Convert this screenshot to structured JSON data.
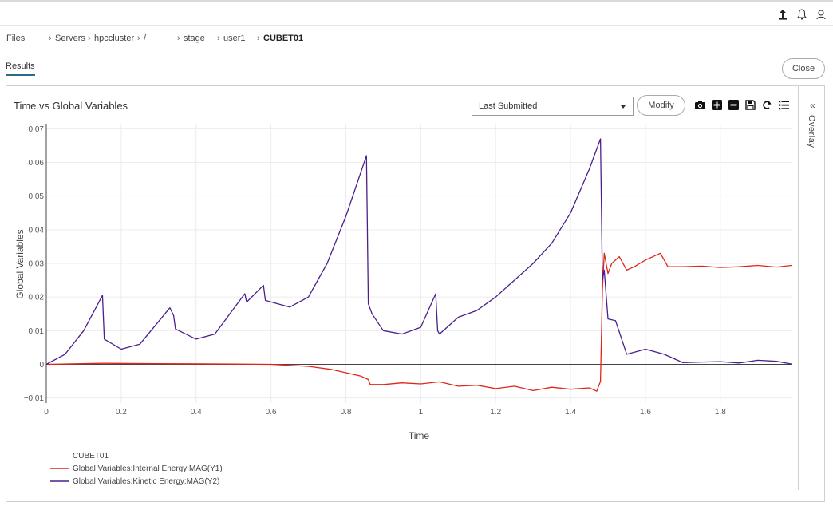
{
  "topbar": {
    "icons": [
      "upload-icon",
      "bell-icon",
      "user-icon"
    ]
  },
  "breadcrumb": {
    "items": [
      {
        "label": "Files",
        "sep": ""
      },
      {
        "label": "Servers",
        "sep": "›"
      },
      {
        "label": "hpccluster",
        "sep": "›"
      },
      {
        "label": "/",
        "sep": "›"
      },
      {
        "label": "stage",
        "sep": "›"
      },
      {
        "label": "user1",
        "sep": "›"
      },
      {
        "label": "CUBET01",
        "sep": "›"
      }
    ]
  },
  "tabs": {
    "results": "Results"
  },
  "buttons": {
    "close": "Close",
    "modify": "Modify"
  },
  "plot_controls": {
    "selected": "Last Submitted",
    "overlay_label": "Overlay"
  },
  "toolbar": {
    "icons": [
      "camera-icon",
      "zoom-in-icon",
      "zoom-out-icon",
      "save-icon",
      "reset-icon",
      "list-icon"
    ]
  },
  "colors": {
    "y1": "#e0261c",
    "y2": "#4b1f8c",
    "accent": "#2b6c8a"
  },
  "chart_data": {
    "type": "line",
    "title": "Time vs Global Variables",
    "xlabel": "Time",
    "ylabel": "Global Variables",
    "xlim": [
      0,
      1.99
    ],
    "ylim": [
      -0.0115,
      0.0715
    ],
    "xticks": [
      "0",
      "0.2",
      "0.4",
      "0.6",
      "0.8",
      "1",
      "1.2",
      "1.4",
      "1.6",
      "1.8"
    ],
    "yticks": [
      "0.07",
      "0.06",
      "0.05",
      "0.04",
      "0.03",
      "0.02",
      "0.01",
      "0",
      "−0.01"
    ],
    "legend": {
      "title": "CUBET01",
      "position": "bottom-left"
    },
    "series": [
      {
        "name": "Global Variables:Internal Energy:MAG(Y1)",
        "x": [
          0,
          0.15,
          0.3,
          0.5,
          0.6,
          0.7,
          0.76,
          0.8,
          0.84,
          0.86,
          0.865,
          0.9,
          0.95,
          1.0,
          1.05,
          1.1,
          1.15,
          1.2,
          1.25,
          1.3,
          1.35,
          1.4,
          1.45,
          1.47,
          1.48,
          1.485,
          1.49,
          1.5,
          1.51,
          1.53,
          1.55,
          1.57,
          1.6,
          1.64,
          1.66,
          1.7,
          1.75,
          1.8,
          1.85,
          1.9,
          1.95,
          1.99
        ],
        "y": [
          0,
          0.0003,
          0.0002,
          0.0001,
          0.0,
          -0.0006,
          -0.0015,
          -0.0025,
          -0.0035,
          -0.0045,
          -0.006,
          -0.006,
          -0.0055,
          -0.0058,
          -0.0052,
          -0.0065,
          -0.0062,
          -0.0072,
          -0.0065,
          -0.0078,
          -0.0068,
          -0.0074,
          -0.007,
          -0.008,
          -0.005,
          0.022,
          0.033,
          0.027,
          0.03,
          0.032,
          0.028,
          0.029,
          0.031,
          0.033,
          0.029,
          0.029,
          0.0292,
          0.0288,
          0.029,
          0.0294,
          0.0289,
          0.0294
        ]
      },
      {
        "name": "Global Variables:Kinetic Energy:MAG(Y2)",
        "x": [
          0,
          0.05,
          0.1,
          0.15,
          0.155,
          0.2,
          0.25,
          0.33,
          0.34,
          0.345,
          0.4,
          0.45,
          0.53,
          0.535,
          0.58,
          0.585,
          0.65,
          0.7,
          0.75,
          0.8,
          0.855,
          0.86,
          0.87,
          0.9,
          0.95,
          1.0,
          1.04,
          1.045,
          1.05,
          1.1,
          1.15,
          1.2,
          1.25,
          1.3,
          1.35,
          1.4,
          1.45,
          1.48,
          1.485,
          1.49,
          1.5,
          1.52,
          1.55,
          1.6,
          1.65,
          1.7,
          1.75,
          1.8,
          1.85,
          1.9,
          1.95,
          1.99
        ],
        "y": [
          0,
          0.003,
          0.01,
          0.0205,
          0.0075,
          0.0045,
          0.006,
          0.0168,
          0.0145,
          0.0105,
          0.0075,
          0.009,
          0.021,
          0.0185,
          0.0235,
          0.019,
          0.017,
          0.02,
          0.03,
          0.044,
          0.062,
          0.018,
          0.015,
          0.01,
          0.009,
          0.011,
          0.021,
          0.01,
          0.009,
          0.014,
          0.016,
          0.02,
          0.025,
          0.03,
          0.036,
          0.045,
          0.058,
          0.067,
          0.025,
          0.028,
          0.0135,
          0.013,
          0.003,
          0.0045,
          0.003,
          0.0005,
          0.0007,
          0.0008,
          0.0004,
          0.0012,
          0.0009,
          0.0001
        ]
      }
    ]
  }
}
